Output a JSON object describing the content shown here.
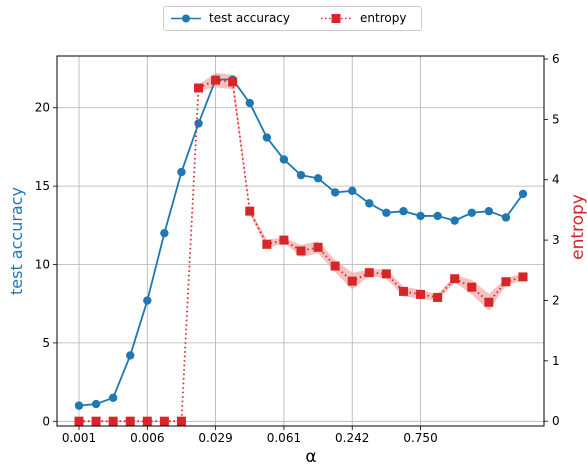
{
  "chart_data": {
    "type": "line",
    "x_tick_labels": [
      "0.001",
      "0.006",
      "0.029",
      "0.061",
      "0.242",
      "0.750"
    ],
    "xlabel": "α",
    "ylabel_left": "test accuracy",
    "ylabel_right": "entropy",
    "ylim_left": [
      -0.3,
      23.3
    ],
    "ylim_right": [
      -0.08,
      6.05
    ],
    "yticks_left": [
      0,
      5,
      10,
      15,
      20
    ],
    "yticks_right": [
      0,
      1,
      2,
      3,
      4,
      5,
      6
    ],
    "grid": true,
    "legend_position": "top-center",
    "colors": {
      "accuracy": "#1f77b4",
      "entropy": "#d62728",
      "band": "#f4a6a6"
    },
    "series": [
      {
        "name": "test accuracy",
        "axis": "left",
        "marker": "circle",
        "values": [
          1.0,
          1.1,
          1.5,
          4.2,
          7.7,
          12.0,
          15.9,
          19.0,
          21.8,
          21.8,
          20.3,
          18.1,
          16.7,
          15.7,
          15.5,
          14.6,
          14.7,
          13.9,
          13.3,
          13.4,
          13.1,
          13.1,
          12.8,
          13.3,
          13.4,
          13.0,
          14.5
        ]
      },
      {
        "name": "entropy",
        "axis": "right",
        "marker": "square",
        "values": [
          0.0,
          0.0,
          0.0,
          0.0,
          0.0,
          0.0,
          0.0,
          5.52,
          5.65,
          5.62,
          3.48,
          2.93,
          3.0,
          2.82,
          2.88,
          2.57,
          2.32,
          2.46,
          2.44,
          2.15,
          2.1,
          2.05,
          2.36,
          2.22,
          1.97,
          2.31,
          2.39
        ],
        "band_halfwidth": [
          0,
          0,
          0,
          0,
          0,
          0,
          0,
          0.05,
          0.12,
          0.12,
          0.04,
          0.08,
          0.04,
          0.1,
          0.1,
          0.1,
          0.14,
          0.05,
          0.08,
          0.08,
          0.08,
          0.05,
          0.06,
          0.12,
          0.14,
          0.06,
          0.06
        ]
      }
    ]
  }
}
